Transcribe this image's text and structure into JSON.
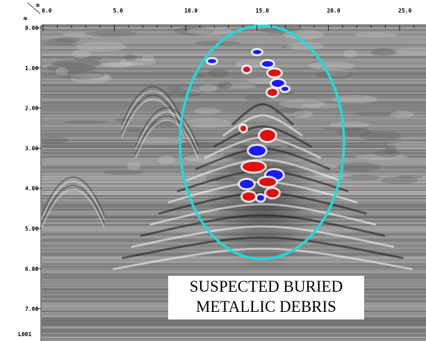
{
  "axes": {
    "x_unit": "m",
    "y_unit": "m",
    "x_ticks": [
      "0.0",
      "5.0",
      "10.0",
      "15.0",
      "20.0",
      "25.0"
    ],
    "y_ticks": [
      "0.00",
      "1.00",
      "2.00",
      "3.00",
      "4.00",
      "5.00",
      "6.00",
      "7.00"
    ]
  },
  "line_label": "L001",
  "annotation": {
    "line1": "SUSPECTED BURIED",
    "line2": "METALLIC DEBRIS"
  }
}
